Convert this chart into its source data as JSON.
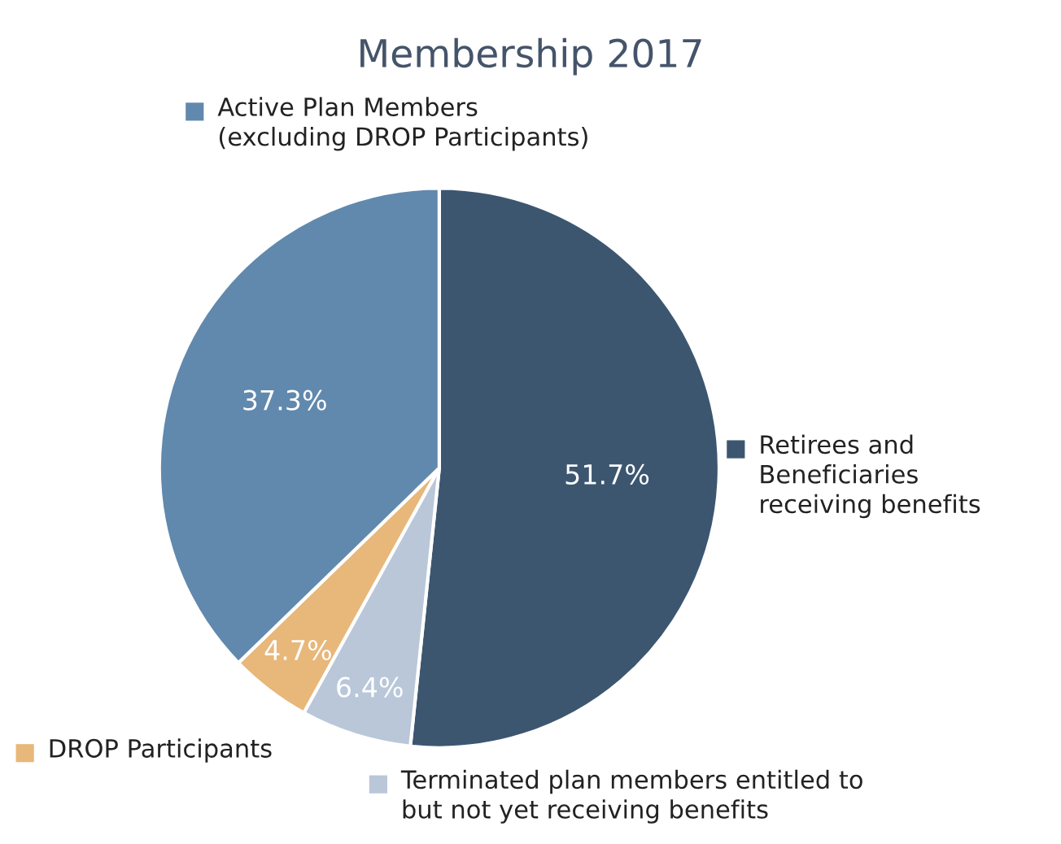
{
  "chart_data": {
    "type": "pie",
    "title": "Membership 2017",
    "categories": [
      "Retirees and\nBeneficiaries\nreceiving benefits",
      "Terminated plan members entitled to\nbut not yet receiving benefits",
      "DROP Participants",
      "Active Plan Members\n(excluding DROP Participants)"
    ],
    "values": [
      51.7,
      6.4,
      4.7,
      37.3
    ],
    "colors": [
      "#3d5670",
      "#b9c7d9",
      "#e8b77a",
      "#6189ad"
    ],
    "value_labels": [
      "51.7%",
      "6.4%",
      "4.7%",
      "37.3%"
    ],
    "legend": "right"
  }
}
